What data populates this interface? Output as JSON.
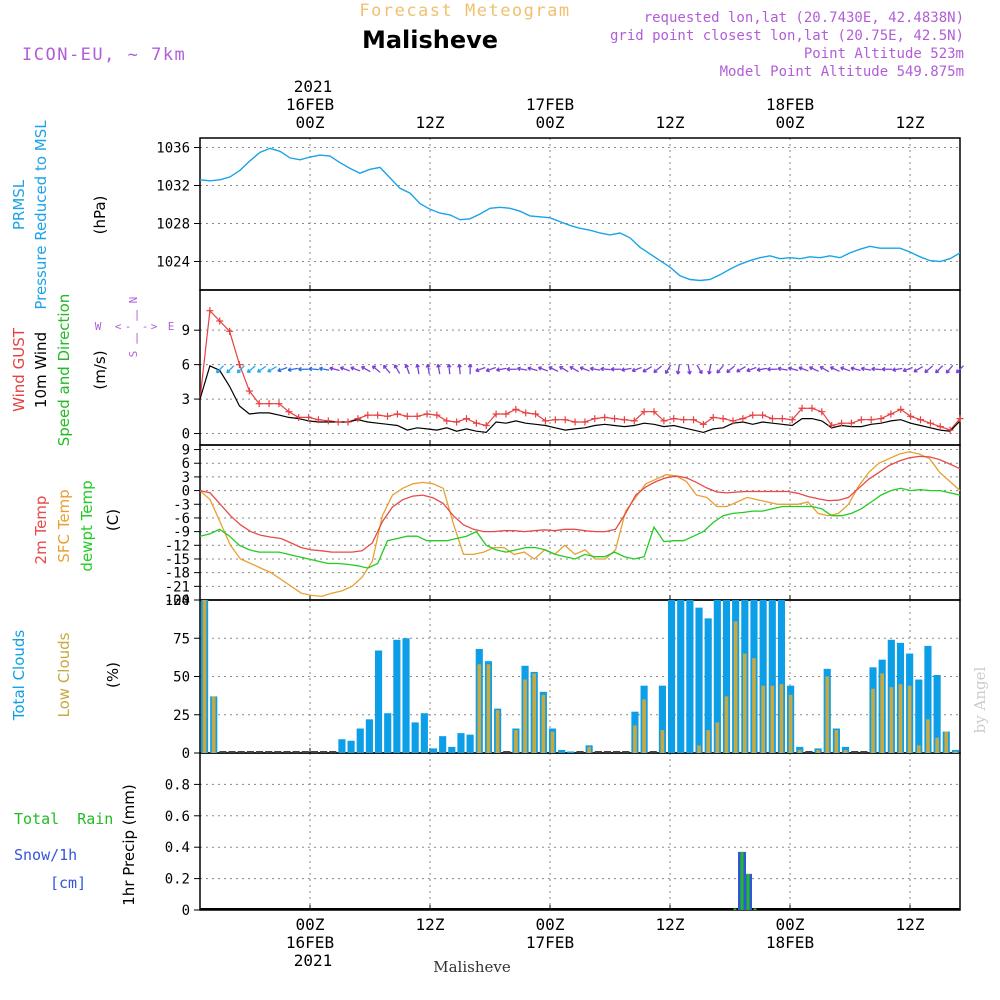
{
  "header": {
    "model": "ICON-EU, ~ 7km",
    "super_title": "Forecast Meteogram",
    "location": "Malisheve",
    "requested": "requested lon,lat (20.7430E, 42.4838N)",
    "grid_point": "grid point closest lon,lat (20.75E, 42.5N)",
    "point_alt": "Point Altitude 523m",
    "model_alt": "Model Point Altitude 549.875m",
    "watermark": "by Angel",
    "footer_location": "Malisheve"
  },
  "time_axis": {
    "top_year": "2021",
    "top_dates": [
      "16FEB",
      "17FEB",
      "18FEB"
    ],
    "hour_labels": [
      "00Z",
      "12Z",
      "00Z",
      "12Z",
      "00Z",
      "12Z"
    ],
    "hour_ticks": [
      24,
      36,
      48,
      60,
      72,
      84
    ],
    "bottom_dates": [
      "16FEB",
      "17FEB",
      "18FEB"
    ],
    "bottom_year": "2021",
    "range_hours": [
      13,
      89
    ]
  },
  "panel_labels": {
    "p1": [
      "PRMSL",
      "Pressure Reduced to MSL",
      "(hPa)"
    ],
    "p2": [
      "Wind GUST",
      "10m Wind",
      "Speed and Direction",
      "(m/s)"
    ],
    "p2_compass": {
      "n": "N",
      "s": "S",
      "w": "W",
      "e": "E",
      "vert_top": "|",
      "vert_mid": "|",
      "horiz_left": "<",
      "horiz_right": ">",
      "dash": "-"
    },
    "p3": [
      "2m Temp",
      "SFC Temp",
      "dewpt Temp",
      "(C)"
    ],
    "p4": [
      "Total Clouds",
      "Low Clouds",
      "(%)"
    ],
    "p5_left": [
      "Total  Rain",
      "Snow/1h",
      "[cm]"
    ],
    "p5_axis": "1hr Precip (mm)"
  },
  "colors": {
    "pressure": "#1aa3e8",
    "gust": "#e84040",
    "wind": "#000000",
    "arrow_cyan": "#22aaee",
    "arrow_purple": "#7a3fd8",
    "temp2m": "#e84a4a",
    "sfc": "#e8a030",
    "dewpt": "#22cc22",
    "total_clouds": "#0c9fe8",
    "low_clouds": "#c8a840",
    "rain": "#22bb22",
    "snow": "#3355dd",
    "purple_text": "#b25dd8",
    "title_gold": "#f0c070"
  },
  "chart_data": [
    {
      "type": "line",
      "name": "PRMSL",
      "ylim": [
        1021,
        1037
      ],
      "yticks": [
        "1024",
        "1028",
        "1032",
        "1036"
      ],
      "x": [
        13,
        14,
        15,
        16,
        17,
        18,
        19,
        20,
        21,
        22,
        23,
        24,
        25,
        26,
        27,
        28,
        29,
        30,
        31,
        32,
        33,
        34,
        35,
        36,
        37,
        38,
        39,
        40,
        41,
        42,
        43,
        44,
        45,
        46,
        47,
        48,
        49,
        50,
        51,
        52,
        53,
        54,
        55,
        56,
        57,
        58,
        59,
        60,
        61,
        62,
        63,
        64,
        65,
        66,
        67,
        68,
        69,
        70,
        71,
        72,
        73,
        74,
        75,
        76,
        77,
        78,
        79,
        80,
        81,
        82,
        83,
        84,
        85,
        86,
        87,
        88,
        89
      ],
      "values": [
        1032.6,
        1032.5,
        1032.6,
        1032.9,
        1033.6,
        1034.6,
        1035.5,
        1035.9,
        1035.6,
        1034.9,
        1034.7,
        1035.0,
        1035.2,
        1035.1,
        1034.4,
        1033.8,
        1033.3,
        1033.7,
        1033.9,
        1032.8,
        1031.7,
        1031.2,
        1030.1,
        1029.5,
        1029.1,
        1028.9,
        1028.4,
        1028.5,
        1029.0,
        1029.6,
        1029.7,
        1029.6,
        1029.3,
        1028.8,
        1028.7,
        1028.6,
        1028.2,
        1027.8,
        1027.5,
        1027.3,
        1027.0,
        1026.8,
        1027.0,
        1026.5,
        1025.5,
        1024.8,
        1024.1,
        1023.4,
        1022.5,
        1022.1,
        1022.0,
        1022.1,
        1022.6,
        1023.2,
        1023.7,
        1024.1,
        1024.4,
        1024.6,
        1024.3,
        1024.4,
        1024.3,
        1024.5,
        1024.4,
        1024.6,
        1024.4,
        1024.9,
        1025.3,
        1025.6,
        1025.4,
        1025.4,
        1025.4,
        1025.0,
        1024.5,
        1024.1,
        1024.0,
        1024.3,
        1024.9
      ]
    },
    {
      "type": "line",
      "name": "Wind",
      "ylim": [
        -1,
        12.5
      ],
      "yticks": [
        "0",
        "3",
        "6",
        "9"
      ],
      "gust": [
        3,
        10.7,
        9.8,
        8.9,
        6.0,
        3.7,
        2.6,
        2.6,
        2.6,
        1.9,
        1.4,
        1.4,
        1.2,
        1.1,
        1.0,
        1.0,
        1.3,
        1.6,
        1.6,
        1.5,
        1.7,
        1.5,
        1.5,
        1.7,
        1.6,
        1.1,
        1.0,
        1.3,
        0.9,
        0.7,
        1.7,
        1.7,
        2.1,
        1.8,
        1.7,
        1.1,
        1.2,
        1.2,
        1.0,
        1.0,
        1.3,
        1.4,
        1.3,
        1.2,
        1.1,
        1.9,
        1.9,
        1.1,
        1.3,
        1.2,
        1.2,
        0.8,
        1.4,
        1.3,
        1.1,
        1.3,
        1.6,
        1.6,
        1.3,
        1.3,
        1.2,
        2.2,
        2.2,
        1.9,
        0.7,
        0.9,
        0.9,
        1.2,
        1.2,
        1.3,
        1.7,
        2.1,
        1.5,
        1.2,
        0.9,
        0.6,
        0.3,
        1.3
      ],
      "wind": [
        3,
        5.9,
        5.5,
        4.1,
        2.4,
        1.7,
        1.8,
        1.8,
        1.6,
        1.4,
        1.3,
        1.1,
        1.0,
        1.0,
        1.0,
        1.0,
        1.2,
        1.0,
        0.9,
        0.8,
        0.7,
        0.3,
        0.5,
        0.4,
        0.3,
        0.5,
        0.2,
        0.4,
        0.2,
        0.1,
        1.0,
        0.9,
        1.1,
        0.9,
        0.8,
        0.7,
        0.5,
        0.3,
        0.4,
        0.5,
        0.7,
        0.8,
        0.7,
        0.6,
        0.7,
        0.9,
        0.8,
        0.6,
        0.7,
        0.5,
        0.3,
        0.1,
        0.4,
        0.5,
        0.9,
        1.0,
        0.8,
        1.0,
        0.9,
        0.8,
        0.7,
        1.3,
        1.3,
        1.1,
        0.5,
        0.7,
        0.6,
        0.6,
        0.8,
        0.9,
        1.1,
        1.2,
        0.9,
        0.7,
        0.5,
        0.3,
        0.2,
        1.1
      ],
      "arrow_colors": [
        "cyan",
        "cyan",
        "cyan",
        "cyan",
        "cyan",
        "cyan",
        "blue",
        "blue",
        "blue",
        "blue",
        "blue",
        "purple",
        "purple",
        "purple",
        "purple",
        "purple",
        "purple",
        "purple",
        "purple",
        "purple",
        "purple",
        "purple",
        "purple",
        "purple",
        "purple",
        "purple",
        "purple",
        "purple",
        "purple",
        "purple",
        "purple",
        "purple",
        "purple",
        "purple",
        "purple",
        "purple",
        "purple",
        "purple",
        "purple",
        "purple",
        "purple",
        "purple",
        "purple",
        "purple",
        "purple",
        "purple",
        "purple",
        "purple",
        "purple",
        "purple",
        "purple",
        "purple",
        "purple",
        "purple",
        "purple",
        "purple",
        "purple",
        "purple",
        "purple",
        "purple",
        "purple",
        "purple",
        "purple",
        "purple",
        "purple",
        "purple",
        "purple",
        "purple",
        "purple",
        "purple",
        "purple",
        "purple"
      ],
      "arrow_angles": [
        225,
        225,
        225,
        220,
        215,
        210,
        200,
        190,
        180,
        175,
        170,
        165,
        160,
        160,
        150,
        140,
        130,
        120,
        110,
        100,
        100,
        100,
        95,
        95,
        90,
        200,
        200,
        190,
        180,
        170,
        165,
        160,
        155,
        150,
        150,
        160,
        170,
        175,
        180,
        190,
        200,
        210,
        220,
        240,
        260,
        280,
        300,
        260,
        230,
        220,
        210,
        200,
        190,
        180,
        170,
        165,
        160,
        155,
        150,
        155,
        160,
        165,
        170,
        175,
        180,
        190,
        200,
        210,
        220,
        225,
        230,
        225
      ]
    },
    {
      "type": "line",
      "name": "Temperature",
      "ylim": [
        -24,
        10
      ],
      "yticks": [
        "9",
        "6",
        "3",
        "0",
        "-3",
        "-6",
        "-9",
        "-12",
        "-15",
        "-18",
        "-21",
        "-24"
      ],
      "t2m": [
        0,
        -0.5,
        -3,
        -5.5,
        -7.5,
        -9,
        -9.8,
        -10.2,
        -10.5,
        -11.5,
        -12.5,
        -13.0,
        -13.2,
        -13.5,
        -13.5,
        -13.5,
        -13.2,
        -11.5,
        -6.8,
        -3.6,
        -2.0,
        -1.2,
        -1.0,
        -1.6,
        -2.8,
        -5.5,
        -7.5,
        -8.5,
        -9.0,
        -9.0,
        -8.8,
        -8.8,
        -9.0,
        -8.8,
        -8.6,
        -8.8,
        -8.5,
        -8.5,
        -8.8,
        -9.0,
        -9.0,
        -8.5,
        -5.0,
        -1.0,
        0.8,
        2.0,
        2.8,
        3.2,
        2.8,
        1.8,
        0.6,
        -0.3,
        -0.5,
        -0.3,
        -0.2,
        -0.2,
        -0.2,
        -0.2,
        -0.2,
        -0.6,
        -1.3,
        -1.8,
        -2.2,
        -2.1,
        -1.5,
        0.5,
        2.5,
        4.0,
        5.5,
        6.5,
        7.2,
        7.5,
        7.4,
        6.8,
        5.8,
        4.8
      ],
      "sfc": [
        0,
        -2,
        -7,
        -12,
        -15,
        -16,
        -17,
        -18,
        -19.5,
        -21,
        -22.5,
        -23,
        -23.2,
        -22.5,
        -22,
        -21,
        -19,
        -15.5,
        -5.5,
        -1,
        0.5,
        1.5,
        1.8,
        1.5,
        0.5,
        -7.2,
        -14,
        -14,
        -13.5,
        -12.5,
        -12.5,
        -14,
        -13.5,
        -15,
        -13,
        -14,
        -12,
        -14,
        -13,
        -15,
        -15,
        -13,
        -4.5,
        -1.5,
        1.5,
        2.5,
        3.5,
        3.2,
        2.0,
        -1,
        -1.5,
        -3.5,
        -3.5,
        -2.5,
        -1.5,
        -2,
        -2.5,
        -3,
        -3,
        -3,
        -2.5,
        -5,
        -5.5,
        -5,
        -3,
        1,
        4,
        6,
        7,
        8,
        8.5,
        8,
        7,
        4,
        2,
        0
      ],
      "dewpt": [
        -10,
        -9.5,
        -8.5,
        -10,
        -12,
        -13,
        -13.5,
        -13.5,
        -13.5,
        -14,
        -14.5,
        -15,
        -15.5,
        -16,
        -16,
        -16.2,
        -16.5,
        -17,
        -16,
        -11,
        -10.5,
        -10,
        -10,
        -11,
        -11,
        -11,
        -10.5,
        -10,
        -9,
        -12,
        -13,
        -13.5,
        -13,
        -12.5,
        -12.5,
        -13,
        -14,
        -14.5,
        -15,
        -14,
        -14.5,
        -14.5,
        -13.5,
        -14.5,
        -15,
        -14.5,
        -8,
        -11.2,
        -11,
        -11,
        -10,
        -9,
        -7,
        -5.5,
        -5,
        -4.8,
        -4.5,
        -4.5,
        -4,
        -3.5,
        -3.5,
        -3.5,
        -3.5,
        -4,
        -5.5,
        -5.5,
        -5,
        -4,
        -2.5,
        -1,
        0,
        0.5,
        0,
        0.2,
        0,
        0,
        -0.5,
        -1
      ]
    },
    {
      "type": "bar",
      "name": "Clouds",
      "ylim": [
        0,
        100
      ],
      "yticks": [
        "0",
        "25",
        "50",
        "75",
        "100"
      ],
      "total": [
        100,
        37,
        0,
        0,
        0,
        0,
        0,
        0,
        0,
        0,
        0,
        0,
        0,
        0,
        0,
        9,
        8,
        16,
        22,
        67,
        26,
        74,
        75,
        20,
        26,
        3,
        11,
        4,
        13,
        12,
        68,
        60,
        29,
        0,
        16,
        57,
        53,
        40,
        16,
        2,
        1,
        0,
        5,
        0,
        0,
        0,
        0,
        27,
        44,
        0,
        44,
        100,
        100,
        100,
        95,
        88,
        100,
        100,
        100,
        100,
        100,
        100,
        100,
        100,
        44,
        4,
        0,
        3,
        55,
        16,
        4,
        0,
        0,
        56,
        61,
        74,
        72,
        65,
        48,
        70,
        51,
        14,
        2
      ],
      "low": [
        100,
        37,
        0,
        0,
        0,
        0,
        0,
        0,
        0,
        0,
        0,
        0,
        0,
        0,
        0,
        0,
        0,
        0,
        0,
        0,
        0,
        0,
        0,
        0,
        0,
        0,
        0,
        0,
        0,
        0,
        58,
        58,
        28,
        0,
        15,
        48,
        52,
        38,
        14,
        0,
        0,
        0,
        4,
        0,
        0,
        0,
        0,
        18,
        35,
        0,
        15,
        0,
        0,
        0,
        5,
        15,
        20,
        37,
        86,
        65,
        62,
        44,
        44,
        45,
        38,
        2,
        0,
        2,
        50,
        15,
        2,
        0,
        0,
        42,
        52,
        43,
        45,
        44,
        5,
        22,
        10,
        14,
        1
      ]
    },
    {
      "type": "bar",
      "name": "Precipitation",
      "ylim": [
        0,
        1.0
      ],
      "yticks": [
        "0",
        "0.2",
        "0.4",
        "0.6",
        "0.8"
      ],
      "x": [
        66.5,
        67.2,
        67.8,
        68.5
      ],
      "rain": [
        0.01,
        0.37,
        0.23,
        0.01
      ],
      "snow": [
        0.0,
        0.37,
        0.23,
        0.0
      ]
    }
  ]
}
